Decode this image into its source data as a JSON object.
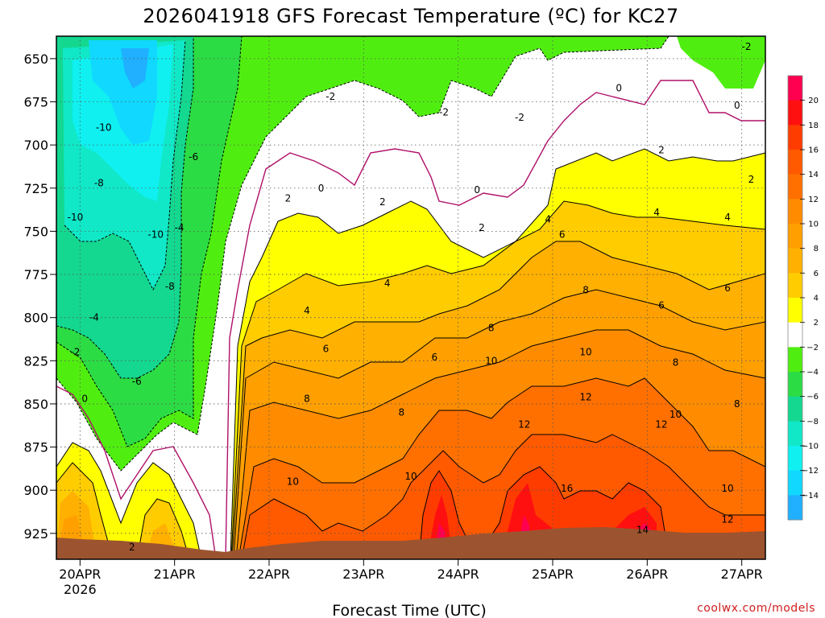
{
  "chart_data": {
    "type": "heatmap",
    "title": "2026041918 GFS Forecast Temperature (ºC) for KC27",
    "xlabel": "Forecast Time (UTC)",
    "ylabel": "",
    "credit": "coolwx.com/models",
    "x_ticks": [
      {
        "label": "20APR",
        "sub": "2026",
        "day": 20
      },
      {
        "label": "21APR",
        "sub": "",
        "day": 21
      },
      {
        "label": "22APR",
        "sub": "",
        "day": 22
      },
      {
        "label": "23APR",
        "sub": "",
        "day": 23
      },
      {
        "label": "24APR",
        "sub": "",
        "day": 24
      },
      {
        "label": "25APR",
        "sub": "",
        "day": 25
      },
      {
        "label": "26APR",
        "sub": "",
        "day": 26
      },
      {
        "label": "27APR",
        "sub": "",
        "day": 27
      }
    ],
    "xlim_days": [
      19.75,
      27.25
    ],
    "y_ticks": [
      "650",
      "675",
      "700",
      "725",
      "750",
      "775",
      "800",
      "825",
      "850",
      "875",
      "900",
      "925"
    ],
    "y_values": [
      650,
      675,
      700,
      725,
      750,
      775,
      800,
      825,
      850,
      875,
      900,
      925
    ],
    "ylim": [
      637,
      940
    ],
    "colorbar": {
      "ticks": [
        "20",
        "18",
        "16",
        "14",
        "12",
        "10",
        "8",
        "6",
        "4",
        "2",
        "−2",
        "−4",
        "−6",
        "−8",
        "−10",
        "−12",
        "−14"
      ],
      "bands": [
        {
          "min": 20,
          "max": 22,
          "color": "#ff0050"
        },
        {
          "min": 18,
          "max": 20,
          "color": "#ff1010"
        },
        {
          "min": 16,
          "max": 18,
          "color": "#ff3c00"
        },
        {
          "min": 14,
          "max": 16,
          "color": "#ff5a00"
        },
        {
          "min": 12,
          "max": 14,
          "color": "#ff7000"
        },
        {
          "min": 10,
          "max": 12,
          "color": "#ff8c00"
        },
        {
          "min": 8,
          "max": 10,
          "color": "#ffa000"
        },
        {
          "min": 6,
          "max": 8,
          "color": "#ffb000"
        },
        {
          "min": 4,
          "max": 6,
          "color": "#ffcc00"
        },
        {
          "min": 2,
          "max": 4,
          "color": "#ffff00"
        },
        {
          "min": -2,
          "max": 2,
          "color": "#ffffff"
        },
        {
          "min": -4,
          "max": -2,
          "color": "#50ee10"
        },
        {
          "min": -6,
          "max": -4,
          "color": "#2cdc44"
        },
        {
          "min": -8,
          "max": -6,
          "color": "#14d890"
        },
        {
          "min": -10,
          "max": -8,
          "color": "#10e8c8"
        },
        {
          "min": -12,
          "max": -10,
          "color": "#10f0f0"
        },
        {
          "min": -14,
          "max": -12,
          "color": "#10d8ff"
        },
        {
          "min": -16,
          "max": -14,
          "color": "#20b0ff"
        }
      ]
    },
    "contour_labels": [
      {
        "text": "-10",
        "day": 20.25,
        "p": 690
      },
      {
        "text": "-8",
        "day": 20.2,
        "p": 722
      },
      {
        "text": "-10",
        "day": 19.95,
        "p": 742
      },
      {
        "text": "-10",
        "day": 20.8,
        "p": 752
      },
      {
        "text": "-6",
        "day": 21.2,
        "p": 707
      },
      {
        "text": "-4",
        "day": 21.05,
        "p": 748
      },
      {
        "text": "-8",
        "day": 20.95,
        "p": 782
      },
      {
        "text": "-4",
        "day": 20.15,
        "p": 800
      },
      {
        "text": "-2",
        "day": 19.95,
        "p": 820
      },
      {
        "text": "-6",
        "day": 20.6,
        "p": 837
      },
      {
        "text": "0",
        "day": 20.05,
        "p": 847
      },
      {
        "text": "2",
        "day": 20.55,
        "p": 933
      },
      {
        "text": "-2",
        "day": 22.65,
        "p": 672
      },
      {
        "text": "0",
        "day": 22.55,
        "p": 725
      },
      {
        "text": "2",
        "day": 22.2,
        "p": 731
      },
      {
        "text": "2",
        "day": 23.2,
        "p": 733
      },
      {
        "text": "4",
        "day": 22.4,
        "p": 796
      },
      {
        "text": "4",
        "day": 23.25,
        "p": 780
      },
      {
        "text": "6",
        "day": 22.6,
        "p": 818
      },
      {
        "text": "6",
        "day": 23.75,
        "p": 823
      },
      {
        "text": "8",
        "day": 22.4,
        "p": 847
      },
      {
        "text": "8",
        "day": 23.4,
        "p": 855
      },
      {
        "text": "10",
        "day": 22.25,
        "p": 895
      },
      {
        "text": "10",
        "day": 23.5,
        "p": 892
      },
      {
        "text": "-2",
        "day": 23.85,
        "p": 681
      },
      {
        "text": "0",
        "day": 24.2,
        "p": 726
      },
      {
        "text": "2",
        "day": 24.25,
        "p": 748
      },
      {
        "text": "-2",
        "day": 24.65,
        "p": 684
      },
      {
        "text": "8",
        "day": 24.35,
        "p": 806
      },
      {
        "text": "10",
        "day": 24.35,
        "p": 825
      },
      {
        "text": "12",
        "day": 24.7,
        "p": 862
      },
      {
        "text": "0",
        "day": 25.7,
        "p": 667
      },
      {
        "text": "-2",
        "day": 27.05,
        "p": 643
      },
      {
        "text": "0",
        "day": 26.95,
        "p": 677
      },
      {
        "text": "2",
        "day": 26.15,
        "p": 703
      },
      {
        "text": "2",
        "day": 27.1,
        "p": 720
      },
      {
        "text": "4",
        "day": 24.95,
        "p": 743
      },
      {
        "text": "6",
        "day": 25.1,
        "p": 752
      },
      {
        "text": "4",
        "day": 26.1,
        "p": 739
      },
      {
        "text": "4",
        "day": 26.85,
        "p": 742
      },
      {
        "text": "8",
        "day": 25.35,
        "p": 784
      },
      {
        "text": "6",
        "day": 26.15,
        "p": 793
      },
      {
        "text": "6",
        "day": 26.85,
        "p": 783
      },
      {
        "text": "10",
        "day": 25.35,
        "p": 820
      },
      {
        "text": "8",
        "day": 26.3,
        "p": 826
      },
      {
        "text": "12",
        "day": 25.35,
        "p": 846
      },
      {
        "text": "8",
        "day": 26.95,
        "p": 850
      },
      {
        "text": "10",
        "day": 26.3,
        "p": 856
      },
      {
        "text": "12",
        "day": 26.15,
        "p": 862
      },
      {
        "text": "16",
        "day": 25.15,
        "p": 899
      },
      {
        "text": "10",
        "day": 26.85,
        "p": 899
      },
      {
        "text": "14",
        "day": 25.95,
        "p": 923
      },
      {
        "text": "12",
        "day": 26.85,
        "p": 917
      }
    ]
  }
}
